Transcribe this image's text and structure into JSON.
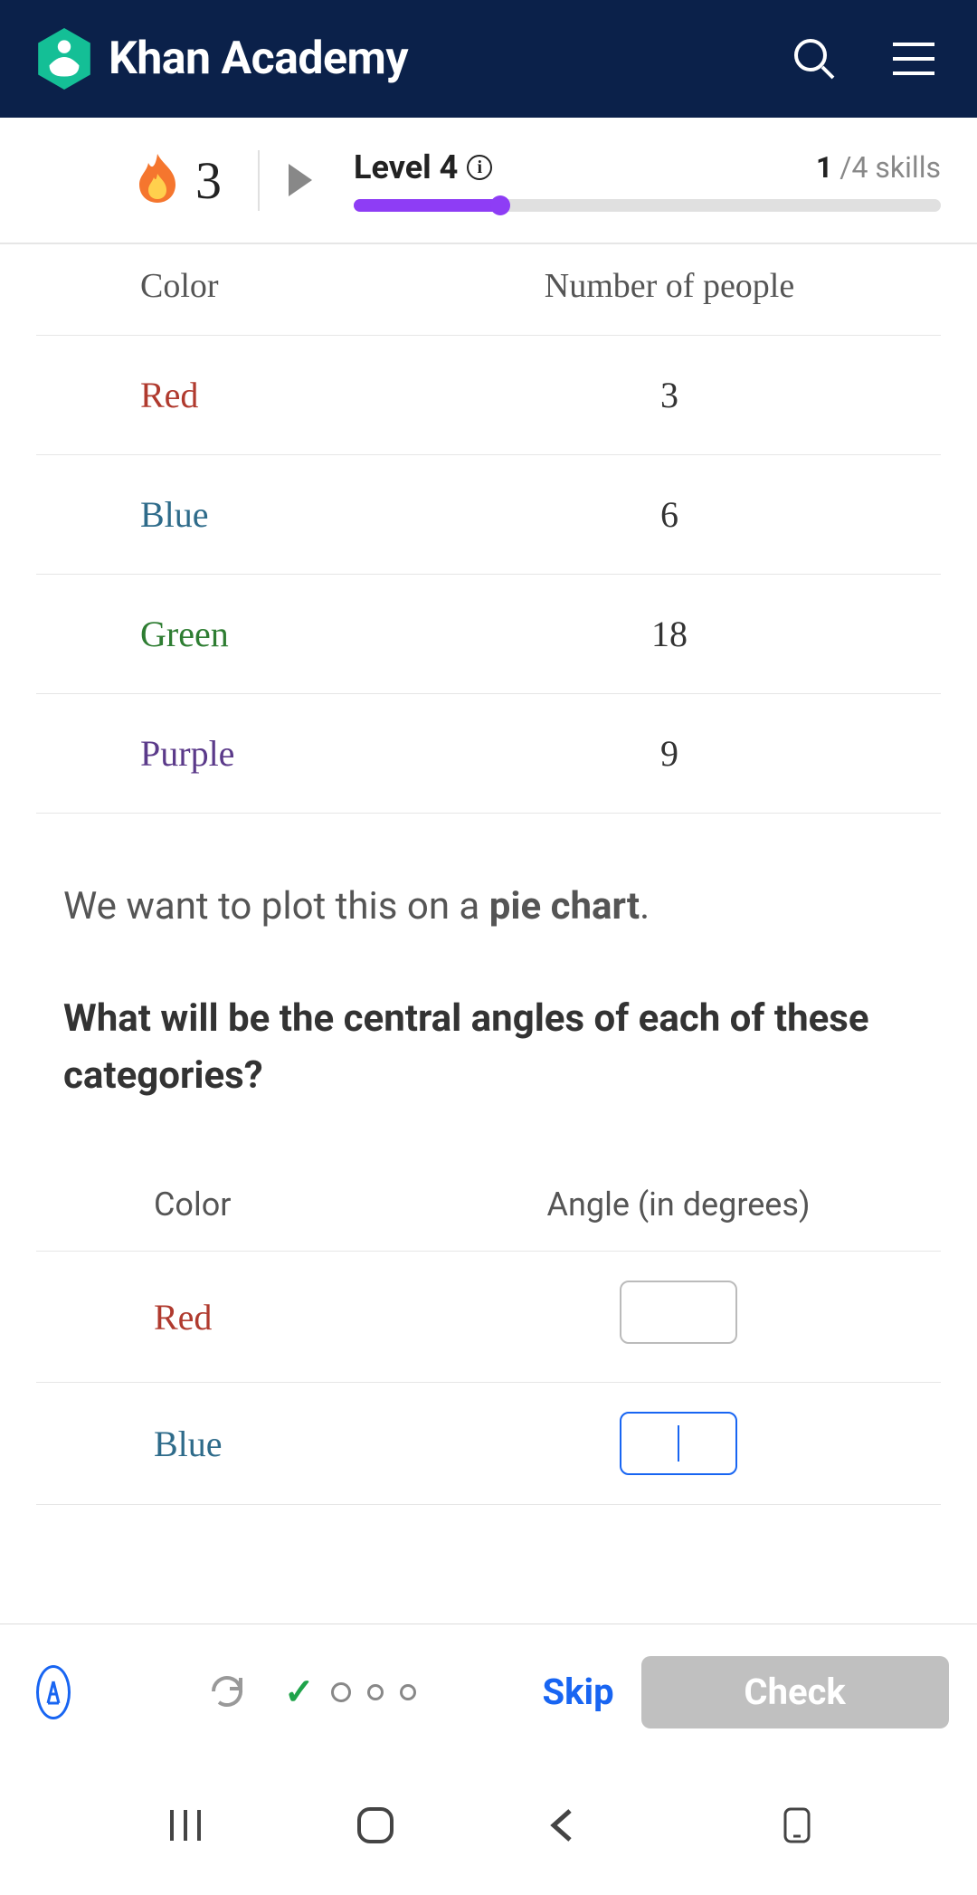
{
  "brand": "Khan Academy",
  "colors": {
    "header_bg": "#0b214a",
    "accent": "#8e3df5",
    "link_blue": "#1865f2",
    "check_disabled": "#c0c0c0",
    "logo_green": "#14bf96",
    "green_check": "#1fa34a",
    "flame_outer": "#f5762e",
    "flame_inner": "#ffd04d"
  },
  "streak": {
    "count": "3"
  },
  "level": {
    "label": "Level 4",
    "skills_done": "1",
    "skills_total": "4",
    "skills_suffix": "skills",
    "progress_percent": 25
  },
  "table1": {
    "headers": [
      "Color",
      "Number of people"
    ],
    "rows": [
      {
        "label": "Red",
        "value": "3",
        "color": "#b03a2e"
      },
      {
        "label": "Blue",
        "value": "6",
        "color": "#2e6b8a"
      },
      {
        "label": "Green",
        "value": "18",
        "color": "#2e7d32"
      },
      {
        "label": "Purple",
        "value": "9",
        "color": "#5b3a8a"
      }
    ]
  },
  "prompt": {
    "pre": "We want to plot this on a ",
    "bold": "pie chart",
    "post": "."
  },
  "question": "What will be the central angles of each of these categories?",
  "table2": {
    "headers": [
      "Color",
      "Angle (in degrees)"
    ],
    "rows": [
      {
        "label": "Red",
        "color": "#b03a2e",
        "value": "",
        "focused": false
      },
      {
        "label": "Blue",
        "color": "#2e6b8a",
        "value": "",
        "focused": true
      }
    ]
  },
  "buttons": {
    "skip": "Skip",
    "check": "Check"
  }
}
